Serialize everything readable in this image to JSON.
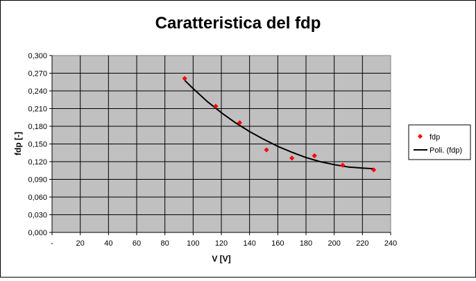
{
  "chart_data": {
    "type": "scatter",
    "title": "Caratteristica del fdp",
    "xlabel": "V [V]",
    "ylabel": "fdp [-]",
    "xlim": [
      0,
      240
    ],
    "ylim": [
      0,
      0.3
    ],
    "x_ticks": [
      0,
      20,
      40,
      60,
      80,
      100,
      120,
      140,
      160,
      180,
      200,
      220,
      240
    ],
    "x_tick_labels": [
      "-",
      "20",
      "40",
      "60",
      "80",
      "100",
      "120",
      "140",
      "160",
      "180",
      "200",
      "220",
      "240"
    ],
    "y_ticks": [
      0,
      0.03,
      0.06,
      0.09,
      0.12,
      0.15,
      0.18,
      0.21,
      0.24,
      0.27,
      0.3
    ],
    "y_tick_labels": [
      "0,000",
      "0,030",
      "0,060",
      "0,090",
      "0,120",
      "0,150",
      "0,180",
      "0,210",
      "0,240",
      "0,270",
      "0,300"
    ],
    "grid": true,
    "plot_background": "#c0c0c0",
    "legend_position": "right",
    "series": [
      {
        "name": "fdp",
        "kind": "scatter",
        "color": "#ff0000",
        "x": [
          94,
          116,
          133,
          152,
          170,
          186,
          206,
          228
        ],
        "y": [
          0.261,
          0.214,
          0.186,
          0.14,
          0.126,
          0.13,
          0.114,
          0.106
        ]
      },
      {
        "name": "Poli. (fdp)",
        "kind": "trendline",
        "color": "#000000",
        "x": [
          94,
          100,
          110,
          120,
          130,
          140,
          150,
          160,
          170,
          180,
          190,
          200,
          210,
          220,
          228
        ],
        "y": [
          0.258,
          0.244,
          0.222,
          0.203,
          0.186,
          0.171,
          0.158,
          0.146,
          0.136,
          0.127,
          0.12,
          0.115,
          0.111,
          0.109,
          0.108
        ]
      }
    ]
  }
}
